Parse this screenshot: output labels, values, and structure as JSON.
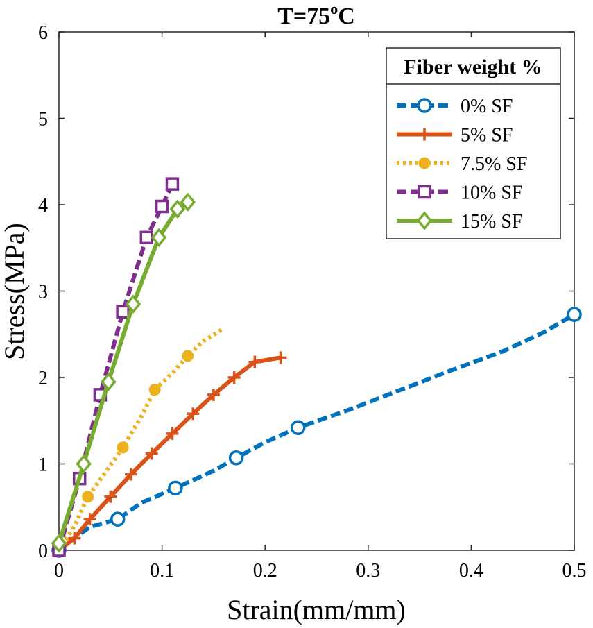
{
  "chart_data": {
    "type": "line",
    "title": {
      "base": "T=75",
      "superscript": "o",
      "suffix": "C"
    },
    "xlabel": "Strain(mm/mm)",
    "ylabel": "Stress(MPa)",
    "xlim": [
      0,
      0.5
    ],
    "ylim": [
      0,
      6
    ],
    "xticks": [
      0,
      0.1,
      0.2,
      0.3,
      0.4,
      0.5
    ],
    "xtick_labels": [
      "0",
      "0.1",
      "0.2",
      "0.3",
      "0.4",
      "0.5"
    ],
    "yticks": [
      0,
      1,
      2,
      3,
      4,
      5,
      6
    ],
    "ytick_labels": [
      "0",
      "1",
      "2",
      "3",
      "4",
      "5",
      "6"
    ],
    "grid": false,
    "legend": {
      "title": "Fiber weight %",
      "position": "top-right"
    },
    "series": [
      {
        "name": "0% SF",
        "color": "#0072BD",
        "marker": "circle",
        "line": "dashed",
        "x": [
          0,
          0.01,
          0.03,
          0.057,
          0.08,
          0.113,
          0.15,
          0.172,
          0.2,
          0.232,
          0.28,
          0.33,
          0.38,
          0.43,
          0.47,
          0.5
        ],
        "y": [
          0,
          0.1,
          0.27,
          0.36,
          0.55,
          0.72,
          0.92,
          1.07,
          1.25,
          1.42,
          1.62,
          1.85,
          2.08,
          2.3,
          2.52,
          2.73
        ],
        "marker_indices": [
          0,
          3,
          5,
          7,
          9,
          15
        ]
      },
      {
        "name": "5% SF",
        "color": "#D95319",
        "marker": "plus",
        "line": "solid",
        "x": [
          0,
          0.015,
          0.03,
          0.05,
          0.07,
          0.09,
          0.11,
          0.13,
          0.15,
          0.17,
          0.19,
          0.215
        ],
        "y": [
          0,
          0.14,
          0.36,
          0.62,
          0.88,
          1.12,
          1.35,
          1.58,
          1.8,
          2.0,
          2.18,
          2.23
        ]
      },
      {
        "name": "7.5% SF",
        "color": "#EDB120",
        "marker": "filled-circle",
        "line": "dotted",
        "x": [
          0,
          0.015,
          0.028,
          0.045,
          0.062,
          0.08,
          0.093,
          0.11,
          0.125,
          0.14,
          0.16
        ],
        "y": [
          0,
          0.28,
          0.62,
          0.9,
          1.19,
          1.55,
          1.86,
          2.05,
          2.25,
          2.42,
          2.57
        ],
        "marker_indices": [
          0,
          2,
          4,
          6,
          8
        ]
      },
      {
        "name": "10% SF",
        "color": "#7E2F8E",
        "marker": "square",
        "line": "dashed",
        "x": [
          0,
          0.02,
          0.04,
          0.062,
          0.085,
          0.1,
          0.11
        ],
        "y": [
          0,
          0.83,
          1.8,
          2.76,
          3.62,
          3.98,
          4.24
        ]
      },
      {
        "name": "15% SF",
        "color": "#77AC30",
        "marker": "diamond",
        "line": "solid",
        "x": [
          0,
          0.024,
          0.048,
          0.072,
          0.097,
          0.115,
          0.125
        ],
        "y": [
          0.08,
          1.0,
          1.95,
          2.85,
          3.62,
          3.95,
          4.03
        ]
      }
    ]
  }
}
